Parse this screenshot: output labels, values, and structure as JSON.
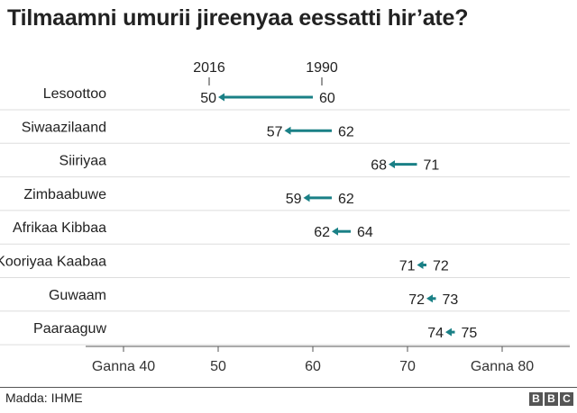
{
  "title": "Tilmaamni umurii jireenyaa eessatti hir’ate?",
  "source": "Madda: IHME",
  "logo": [
    "B",
    "B",
    "C"
  ],
  "colors": {
    "arrow": "#1a8086",
    "grid": "#dddddd",
    "axis": "#555555"
  },
  "chart_data": {
    "type": "arrow",
    "series_labels": {
      "end": "2016",
      "start": "1990"
    },
    "categories": [
      "Lesoottoo",
      "Siwaazilaand",
      "Siiriyaa",
      "Zimbaabuwe",
      "Afrikaa Kibbaa",
      "Kooriyaa Kaabaa",
      "Guwaam",
      "Paaraaguw"
    ],
    "start": [
      60,
      62,
      71,
      62,
      64,
      72,
      73,
      75
    ],
    "end": [
      50,
      57,
      68,
      59,
      62,
      71,
      72,
      74
    ],
    "start_labels": [
      "60",
      "62",
      "71",
      "62",
      "64",
      "72",
      "73",
      "75"
    ],
    "end_labels": [
      "50",
      "57",
      "68",
      "59",
      "62",
      "71",
      "72",
      "74"
    ],
    "x_ticks": [
      40,
      50,
      60,
      70,
      80
    ],
    "x_tick_labels": [
      "Ganna 40",
      "50",
      "60",
      "70",
      "Ganna 80"
    ],
    "xlim": [
      40,
      80
    ]
  }
}
